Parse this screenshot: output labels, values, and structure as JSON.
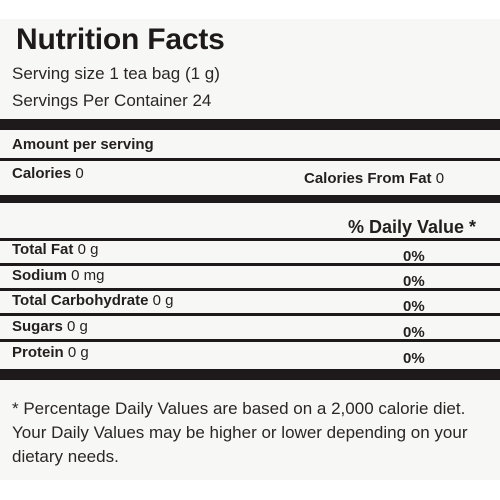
{
  "label": {
    "title": "Nutrition Facts",
    "serving_size": "Serving size 1 tea bag (1 g)",
    "servings_per_container": "Servings Per Container 24",
    "amount_per_serving": "Amount per serving",
    "calories_label": "Calories",
    "calories_value": "0",
    "calories_from_fat_label": "Calories From Fat",
    "calories_from_fat_value": "0",
    "daily_value_header": "% Daily Value *",
    "nutrients": [
      {
        "name": "Total Fat",
        "amount": "0 g",
        "dv": "0%"
      },
      {
        "name": "Sodium",
        "amount": "0 mg",
        "dv": "0%"
      },
      {
        "name": "Total Carbohydrate",
        "amount": "0 g",
        "dv": "0%"
      },
      {
        "name": "Sugars",
        "amount": "0 g",
        "dv": "0%"
      },
      {
        "name": "Protein",
        "amount": "0 g",
        "dv": "0%"
      }
    ],
    "footnote": "* Percentage Daily Values are based on a 2,000 calorie diet. Your Daily Values may be higher or lower depending on your dietary needs."
  }
}
